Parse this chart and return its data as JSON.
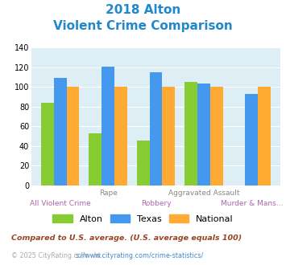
{
  "title_line1": "2018 Alton",
  "title_line2": "Violent Crime Comparison",
  "alton_values": [
    84,
    53,
    46,
    105,
    0
  ],
  "texas_values": [
    109,
    121,
    115,
    104,
    93
  ],
  "national_values": [
    100,
    100,
    100,
    100,
    100
  ],
  "alton_color": "#88cc33",
  "texas_color": "#4499ee",
  "national_color": "#ffaa33",
  "ylim": [
    0,
    140
  ],
  "yticks": [
    0,
    20,
    40,
    60,
    80,
    100,
    120,
    140
  ],
  "bg_color": "#ddeef5",
  "legend_labels": [
    "Alton",
    "Texas",
    "National"
  ],
  "top_xlabels": [
    "",
    "Rape",
    "",
    "Aggravated Assault",
    ""
  ],
  "bottom_xlabels": [
    "All Violent Crime",
    "",
    "Robbery",
    "",
    "Murder & Mans..."
  ],
  "footnote1": "Compared to U.S. average. (U.S. average equals 100)",
  "footnote2": "© 2025 CityRating.com - https://www.cityrating.com/crime-statistics/",
  "title_color": "#2288cc",
  "top_xlabel_color": "#888888",
  "bottom_xlabel_color": "#aa66aa",
  "footnote1_color": "#994422",
  "footnote2_color": "#aaaaaa",
  "url_color": "#4488cc"
}
